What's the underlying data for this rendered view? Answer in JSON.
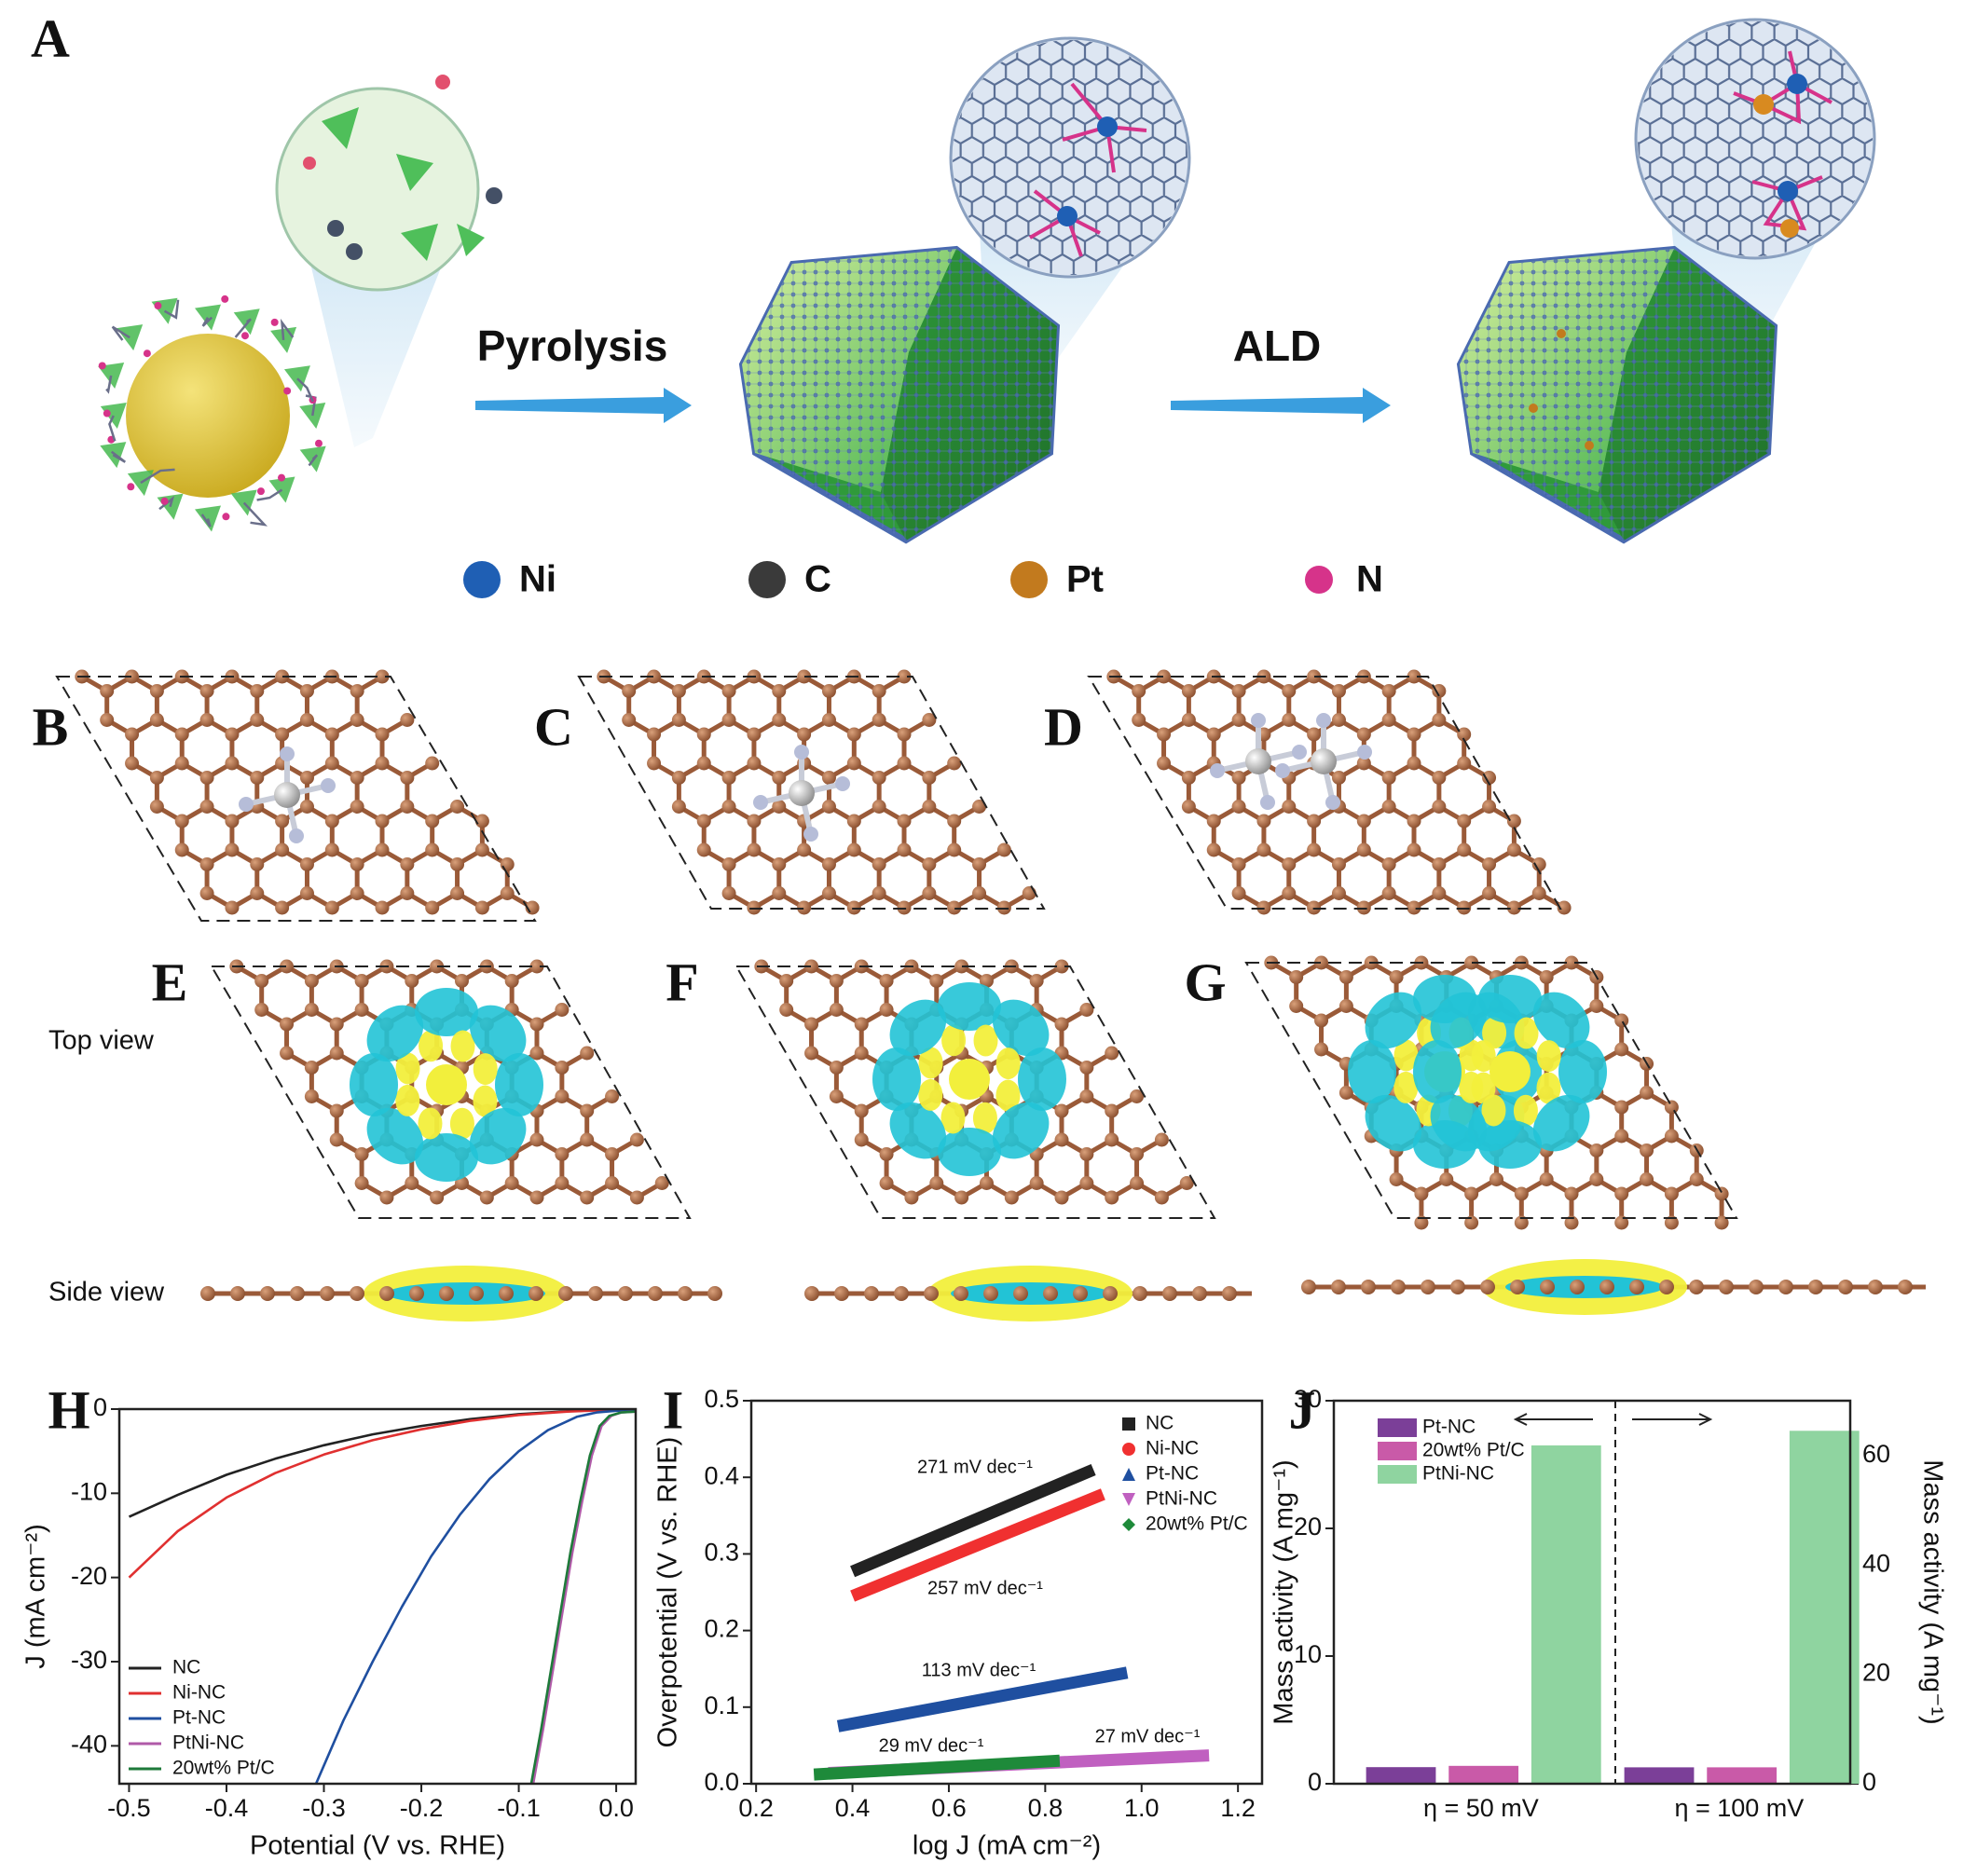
{
  "figure": {
    "panels": [
      "A",
      "B",
      "C",
      "D",
      "E",
      "F",
      "G",
      "H",
      "I",
      "J"
    ],
    "steps": [
      "Pyrolysis",
      "ALD"
    ],
    "atoms": [
      {
        "name": "Ni",
        "color": "#1f5fb4"
      },
      {
        "name": "C",
        "color": "#3a3a3a"
      },
      {
        "name": "Pt",
        "color": "#c27a1e"
      },
      {
        "name": "N",
        "color": "#d6338a"
      }
    ],
    "views": [
      "Top view",
      "Side view"
    ]
  },
  "chart_data": [
    {
      "type": "line",
      "x_label": "Potential (V vs. RHE)",
      "y_label": "J (mA cm⁻²)",
      "xlim": [
        -0.51,
        0.02
      ],
      "xticks": [
        -0.5,
        -0.4,
        -0.3,
        -0.2,
        -0.1,
        {
          "value": 0,
          "label": "0.0"
        }
      ],
      "ylim": [
        -44.5,
        0
      ],
      "yticks": [
        0,
        -10,
        -20,
        -30,
        -40
      ],
      "legend": "lower left",
      "series": [
        {
          "name": "NC",
          "color": "#222222",
          "x": [
            -0.5,
            -0.45,
            -0.4,
            -0.35,
            -0.3,
            -0.25,
            -0.2,
            -0.15,
            -0.1,
            -0.05,
            0,
            0.02
          ],
          "values": [
            -12.8,
            -10.2,
            -7.8,
            -5.9,
            -4.3,
            -3.0,
            -2.0,
            -1.2,
            -0.6,
            -0.25,
            -0.05,
            0
          ]
        },
        {
          "name": "Ni-NC",
          "color": "#e03030",
          "x": [
            -0.5,
            -0.45,
            -0.4,
            -0.35,
            -0.3,
            -0.25,
            -0.2,
            -0.15,
            -0.1,
            -0.05,
            0,
            0.02
          ],
          "values": [
            -20,
            -14.5,
            -10.5,
            -7.6,
            -5.4,
            -3.7,
            -2.4,
            -1.4,
            -0.7,
            -0.3,
            -0.05,
            0
          ]
        },
        {
          "name": "Pt-NC",
          "color": "#1f4fa0",
          "x": [
            -0.31,
            -0.28,
            -0.25,
            -0.22,
            -0.19,
            -0.16,
            -0.13,
            -0.1,
            -0.07,
            -0.04,
            -0.02,
            0,
            0.02
          ],
          "values": [
            -45,
            -37,
            -30,
            -23.5,
            -17.5,
            -12.5,
            -8.3,
            -5.0,
            -2.5,
            -0.9,
            -0.4,
            -0.2,
            -0.2
          ]
        },
        {
          "name": "PtNi-NC",
          "color": "#b05aa8",
          "x": [
            -0.086,
            -0.075,
            -0.065,
            -0.055,
            -0.045,
            -0.035,
            -0.025,
            -0.015,
            -0.005,
            0.005,
            0.02
          ],
          "values": [
            -45,
            -38,
            -31,
            -24,
            -17,
            -11,
            -5.5,
            -2,
            -0.8,
            -0.4,
            -0.3
          ]
        },
        {
          "name": "20wt% Pt/C",
          "color": "#1e7a3a",
          "x": [
            -0.088,
            -0.077,
            -0.067,
            -0.057,
            -0.047,
            -0.037,
            -0.027,
            -0.017,
            -0.007,
            0.005,
            0.02
          ],
          "values": [
            -45,
            -38,
            -31,
            -24,
            -17,
            -11,
            -5.5,
            -2,
            -0.8,
            -0.4,
            -0.3
          ]
        }
      ]
    },
    {
      "type": "line",
      "x_label": "log J (mA cm⁻²)",
      "y_label": "Overpotential (V vs. RHE)",
      "xlim": [
        0.19,
        1.25
      ],
      "xticks": [
        0.2,
        0.4,
        0.6,
        0.8,
        {
          "value": 1,
          "label": "1.0"
        },
        1.2
      ],
      "ylim": [
        0,
        0.5
      ],
      "yticks": [
        {
          "value": 0,
          "label": "0.0"
        },
        0.1,
        0.2,
        0.3,
        0.4,
        0.5
      ],
      "legend": "upper right",
      "annotations": [
        "271 mV dec⁻¹",
        "257 mV dec⁻¹",
        "113 mV dec⁻¹",
        "29 mV dec⁻¹",
        "27 mV dec⁻¹"
      ],
      "series": [
        {
          "name": "NC",
          "color": "#222222",
          "marker": "square",
          "x": [
            0.4,
            0.9
          ],
          "values": [
            0.277,
            0.41
          ]
        },
        {
          "name": "Ni-NC",
          "color": "#f03030",
          "marker": "circle",
          "x": [
            0.4,
            0.92
          ],
          "values": [
            0.245,
            0.378
          ]
        },
        {
          "name": "Pt-NC",
          "color": "#1f4fa0",
          "marker": "triangle-up",
          "x": [
            0.37,
            0.97
          ],
          "values": [
            0.075,
            0.145
          ]
        },
        {
          "name": "PtNi-NC",
          "color": "#c060c0",
          "marker": "triangle-down",
          "x": [
            0.35,
            1.14
          ],
          "values": [
            0.014,
            0.037
          ]
        },
        {
          "name": "20wt% Pt/C",
          "color": "#1e8a3a",
          "marker": "diamond",
          "x": [
            0.32,
            0.83
          ],
          "values": [
            0.012,
            0.03
          ]
        }
      ]
    },
    {
      "type": "bar",
      "y_label": "Mass activity (A mg⁻¹)",
      "y2_label": "Mass activity (A mg⁻¹)",
      "categories": [
        "η = 50 mV",
        "η = 100 mV"
      ],
      "category_axes": [
        "y",
        "y2"
      ],
      "ylim": [
        0,
        30
      ],
      "yticks": [
        0,
        10,
        20,
        30
      ],
      "y2lim": [
        0,
        70
      ],
      "y2ticks": [
        0,
        20,
        40,
        60
      ],
      "legend": "upper left",
      "series": [
        {
          "name": "Pt-NC",
          "color": "#7b3f98",
          "values": [
            1.3,
            3.0
          ]
        },
        {
          "name": "20wt% Pt/C",
          "color": "#c95aa8",
          "values": [
            1.4,
            3.0
          ]
        },
        {
          "name": "PtNi-NC",
          "color": "#8fd4a0",
          "values": [
            26.5,
            64.5
          ]
        }
      ]
    }
  ]
}
